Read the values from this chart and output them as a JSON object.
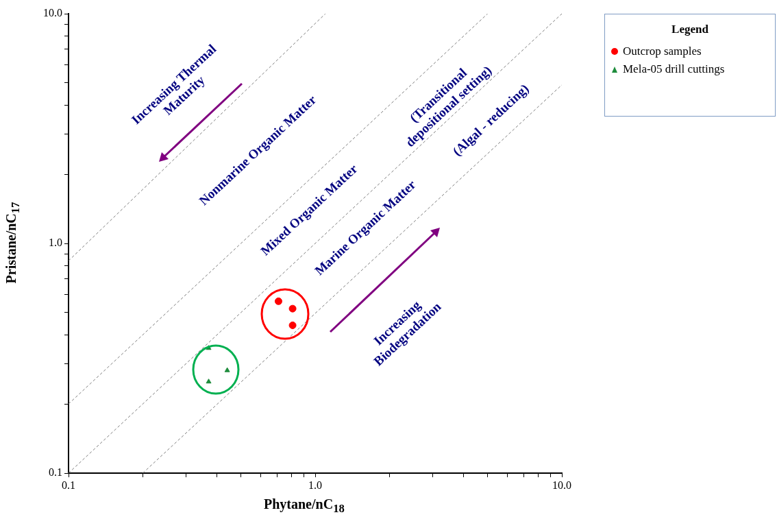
{
  "chart_data": {
    "type": "scatter",
    "xlabel": "Phytane/nC$_{18}$",
    "ylabel": "Pristane/nC$_{17}$",
    "legend_title": "Legend",
    "legend": "top right",
    "grid": false,
    "log": "xy",
    "xlim": [
      0.1,
      10
    ],
    "ylim": [
      0.1,
      10
    ],
    "xticks": [
      {
        "value": 0.1,
        "label": "0.1"
      },
      {
        "value": 0.2,
        "label": null
      },
      {
        "value": 0.3,
        "label": null
      },
      {
        "value": 0.4,
        "label": null
      },
      {
        "value": 0.5,
        "label": null
      },
      {
        "value": 0.6,
        "label": null
      },
      {
        "value": 0.7,
        "label": null
      },
      {
        "value": 0.8,
        "label": null
      },
      {
        "value": 0.9,
        "label": null
      },
      {
        "value": 1,
        "label": "1.0"
      },
      {
        "value": 2,
        "label": null
      },
      {
        "value": 3,
        "label": null
      },
      {
        "value": 4,
        "label": null
      },
      {
        "value": 5,
        "label": null
      },
      {
        "value": 6,
        "label": null
      },
      {
        "value": 7,
        "label": null
      },
      {
        "value": 8,
        "label": null
      },
      {
        "value": 9,
        "label": null
      },
      {
        "value": 10,
        "label": "10.0"
      }
    ],
    "yticks": [
      {
        "value": 0.1,
        "label": "0.1"
      },
      {
        "value": 0.2,
        "label": null
      },
      {
        "value": 0.3,
        "label": null
      },
      {
        "value": 0.4,
        "label": null
      },
      {
        "value": 0.5,
        "label": null
      },
      {
        "value": 0.6,
        "label": null
      },
      {
        "value": 0.7,
        "label": null
      },
      {
        "value": 0.8,
        "label": null
      },
      {
        "value": 0.9,
        "label": null
      },
      {
        "value": 1,
        "label": "1.0"
      },
      {
        "value": 2,
        "label": null
      },
      {
        "value": 3,
        "label": null
      },
      {
        "value": 4,
        "label": null
      },
      {
        "value": 5,
        "label": null
      },
      {
        "value": 6,
        "label": null
      },
      {
        "value": 7,
        "label": null
      },
      {
        "value": 8,
        "label": null
      },
      {
        "value": 9,
        "label": null
      },
      {
        "value": 10,
        "label": "10.0"
      }
    ],
    "series": [
      {
        "name": "Outcrop samples",
        "marker": "circle",
        "color": "#ff0000",
        "x": [
          0.71,
          0.81,
          0.81
        ],
        "values": [
          0.56,
          0.52,
          0.44
        ]
      },
      {
        "name": "Mela-05 drill cuttings",
        "marker": "triangle",
        "color": "#1e8c3c",
        "x": [
          0.37,
          0.44,
          0.37
        ],
        "values": [
          0.35,
          0.28,
          0.25
        ]
      },
      {
        "type": "line",
        "marker": "none",
        "line_style": "dashed",
        "color": "#808080",
        "x": [
          0.1,
          1.1
        ],
        "values": [
          0.84,
          10
        ]
      },
      {
        "type": "line",
        "marker": "none",
        "line_style": "dashed",
        "color": "#808080",
        "x": [
          0.1,
          5
        ],
        "values": [
          0.2,
          10
        ]
      },
      {
        "type": "line",
        "marker": "none",
        "line_style": "dashed",
        "color": "#808080",
        "x": [
          0.1,
          10
        ],
        "values": [
          0.1,
          10
        ]
      },
      {
        "type": "line",
        "marker": "none",
        "line_style": "dashed",
        "color": "#808080",
        "x": [
          0.2,
          10
        ],
        "values": [
          0.1,
          4.9
        ]
      }
    ],
    "annotations": [
      "Increasing Thermal\nMaturity",
      "Nonmarine Organic Matter",
      "(Transitional\ndepositional setting)",
      "Mixed Organic Matter",
      "Marine Organic Matter",
      "(Algal - reducing)",
      "Increasing\nBiodegradation"
    ]
  }
}
